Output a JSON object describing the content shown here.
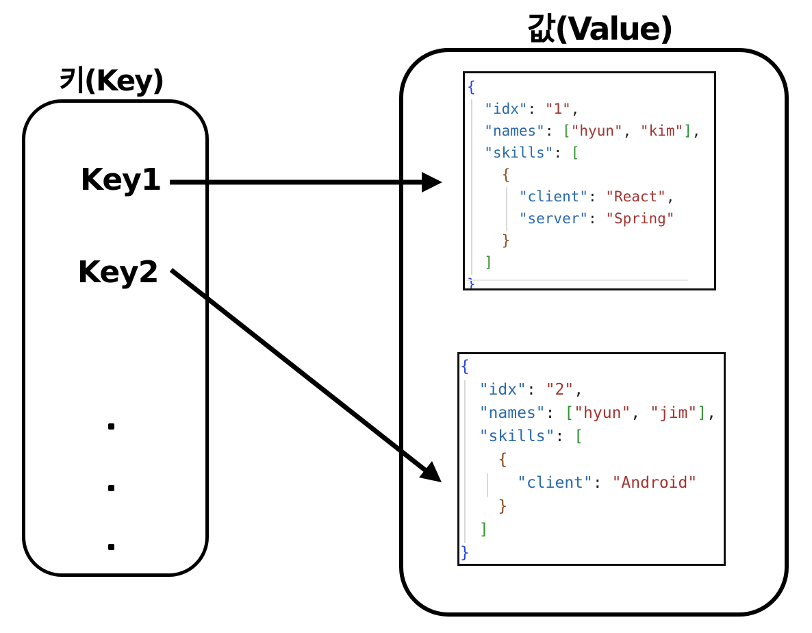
{
  "colors": {
    "json-key": "#2a69ae",
    "json-string": "#a33430",
    "bracket-blue": "#2743e0",
    "bracket-green": "#319331",
    "bracket-brown": "#8a4a26",
    "punctuation": "#1e1e1e",
    "line-color": "#000000"
  },
  "key_panel": {
    "title": "키(Key)",
    "keys": [
      "Key1",
      "Key2"
    ],
    "dots": [
      ".",
      ".",
      "."
    ]
  },
  "value_panel": {
    "title": "값(Value)",
    "blocks": [
      {
        "name": "value-1",
        "lines": [
          [
            [
              "br1",
              "{"
            ]
          ],
          [
            [
              "p",
              "  "
            ],
            [
              "key",
              "\"idx\""
            ],
            [
              "p",
              ": "
            ],
            [
              "str",
              "\"1\""
            ],
            [
              "p",
              ","
            ]
          ],
          [
            [
              "p",
              "  "
            ],
            [
              "key",
              "\"names\""
            ],
            [
              "p",
              ": "
            ],
            [
              "br2",
              "["
            ],
            [
              "str",
              "\"hyun\""
            ],
            [
              "p",
              ", "
            ],
            [
              "str",
              "\"kim\""
            ],
            [
              "br2",
              "]"
            ],
            [
              "p",
              ","
            ]
          ],
          [
            [
              "p",
              "  "
            ],
            [
              "key",
              "\"skills\""
            ],
            [
              "p",
              ": "
            ],
            [
              "br2",
              "["
            ]
          ],
          [
            [
              "p",
              "    "
            ],
            [
              "br3",
              "{"
            ]
          ],
          [
            [
              "p",
              "      "
            ],
            [
              "key",
              "\"client\""
            ],
            [
              "p",
              ": "
            ],
            [
              "str",
              "\"React\""
            ],
            [
              "p",
              ","
            ]
          ],
          [
            [
              "p",
              "      "
            ],
            [
              "key",
              "\"server\""
            ],
            [
              "p",
              ": "
            ],
            [
              "str",
              "\"Spring\""
            ]
          ],
          [
            [
              "p",
              "    "
            ],
            [
              "br3",
              "}"
            ]
          ],
          [
            [
              "p",
              "  "
            ],
            [
              "br2",
              "]"
            ]
          ],
          [
            [
              "br1",
              "}"
            ]
          ]
        ]
      },
      {
        "name": "value-2",
        "lines": [
          [
            [
              "br1",
              "{"
            ]
          ],
          [
            [
              "p",
              "  "
            ],
            [
              "key",
              "\"idx\""
            ],
            [
              "p",
              ": "
            ],
            [
              "str",
              "\"2\""
            ],
            [
              "p",
              ","
            ]
          ],
          [
            [
              "p",
              "  "
            ],
            [
              "key",
              "\"names\""
            ],
            [
              "p",
              ": "
            ],
            [
              "br2",
              "["
            ],
            [
              "str",
              "\"hyun\""
            ],
            [
              "p",
              ", "
            ],
            [
              "str",
              "\"jim\""
            ],
            [
              "br2",
              "]"
            ],
            [
              "p",
              ","
            ]
          ],
          [
            [
              "p",
              "  "
            ],
            [
              "key",
              "\"skills\""
            ],
            [
              "p",
              ": "
            ],
            [
              "br2",
              "["
            ]
          ],
          [
            [
              "p",
              "    "
            ],
            [
              "br3",
              "{"
            ]
          ],
          [
            [
              "p",
              "      "
            ],
            [
              "key",
              "\"client\""
            ],
            [
              "p",
              ": "
            ],
            [
              "str",
              "\"Android\""
            ]
          ],
          [
            [
              "p",
              "    "
            ],
            [
              "br3",
              "}"
            ]
          ],
          [
            [
              "p",
              "  "
            ],
            [
              "br2",
              "]"
            ]
          ],
          [
            [
              "br1",
              "}"
            ]
          ]
        ]
      }
    ]
  },
  "arrows": [
    {
      "from": "Key1",
      "to": "value-1"
    },
    {
      "from": "Key2",
      "to": "value-2"
    }
  ]
}
